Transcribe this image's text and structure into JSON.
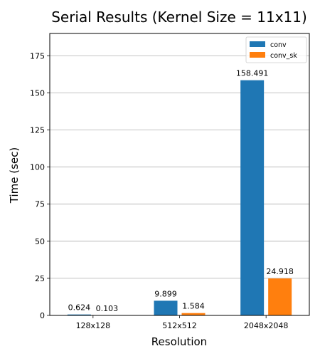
{
  "chart_data": {
    "type": "bar",
    "title": "Serial Results (Kernel Size = 11x11)",
    "xlabel": "Resolution",
    "ylabel": "Time (sec)",
    "categories": [
      "128x128",
      "512x512",
      "2048x2048"
    ],
    "series": [
      {
        "name": "conv",
        "color": "#1f77b4",
        "values": [
          0.624,
          9.899,
          158.491
        ],
        "labels": [
          "0.624",
          "9.899",
          "158.491"
        ]
      },
      {
        "name": "conv_sk",
        "color": "#ff7f0e",
        "values": [
          0.103,
          1.584,
          24.918
        ],
        "labels": [
          "0.103",
          "1.584",
          "24.918"
        ]
      }
    ],
    "ylim": [
      0,
      190
    ],
    "yticks": [
      0,
      25,
      50,
      75,
      100,
      125,
      150,
      175
    ],
    "grid": "y",
    "legend": "top-right"
  }
}
